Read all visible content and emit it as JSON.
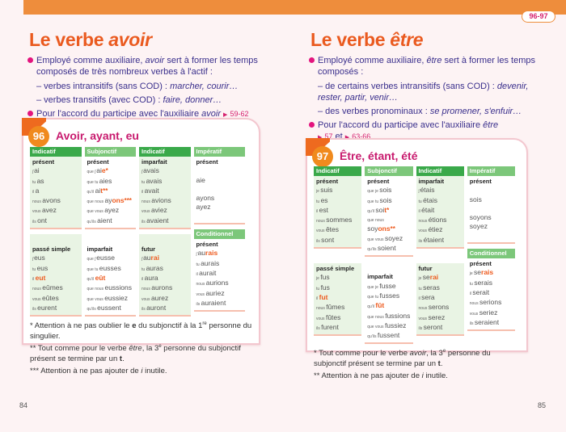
{
  "header": {
    "page_range": "96-97",
    "accent_color": "#ee8d3c"
  },
  "left_page": {
    "title_prefix": "Le verbe ",
    "title_verb": "avoir",
    "intro": {
      "p1_a": "Employé comme auxiliaire, ",
      "p1_verb": "avoir",
      "p1_b": " sert à former les temps composés de très nombreux verbes à l'actif :",
      "sub1_a": "– verbes intransitifs (sans COD) : ",
      "sub1_ex": "marcher, courir…",
      "sub2_a": "– verbes transitifs (avec COD) : ",
      "sub2_ex": "faire, donner…",
      "p2_a": "Pour l'accord du participe avec l'auxiliaire ",
      "p2_verb": "avoir",
      "p2_ref": "59-62"
    },
    "card": {
      "number": "96",
      "title": "Avoir, ayant, eu",
      "headers": {
        "c1": "Indicatif",
        "c2": "Subjonctif",
        "c3": "Indicatif",
        "c4": "Impératif",
        "c4b": "Conditionnel"
      },
      "top": {
        "c1": {
          "tense": "présent",
          "rows": [
            [
              "j'",
              "ai",
              ""
            ],
            [
              "tu",
              "as",
              ""
            ],
            [
              "il",
              "a",
              ""
            ],
            [
              "nous",
              "avons",
              ""
            ],
            [
              "vous",
              "avez",
              ""
            ],
            [
              "ils",
              "ont",
              ""
            ]
          ]
        },
        "c2": {
          "tense": "présent",
          "rows": [
            [
              "que j'",
              "ai",
              "e",
              "*"
            ],
            [
              "que tu",
              "aies",
              "",
              ""
            ],
            [
              "qu'il",
              "ai",
              "t",
              "**"
            ],
            [
              "que nous",
              "ay",
              "ons",
              "***"
            ],
            [
              "que vous",
              "ayez",
              "",
              ""
            ],
            [
              "qu'ils",
              "aient",
              "",
              ""
            ]
          ]
        },
        "c3": {
          "tense": "imparfait",
          "rows": [
            [
              "j'",
              "avais"
            ],
            [
              "tu",
              "avais"
            ],
            [
              "il",
              "avait"
            ],
            [
              "nous",
              "avions"
            ],
            [
              "vous",
              "aviez"
            ],
            [
              "ils",
              "avaient"
            ]
          ]
        },
        "c4": {
          "tense": "présent",
          "rows": [
            "",
            "aie",
            "",
            "ayons",
            "ayez",
            ""
          ]
        }
      },
      "bottom": {
        "c1": {
          "tense": "passé simple",
          "rows": [
            [
              "j'",
              "eus",
              ""
            ],
            [
              "tu",
              "eus",
              ""
            ],
            [
              "il",
              "",
              "eut"
            ],
            [
              "nous",
              "eûmes",
              ""
            ],
            [
              "vous",
              "eûtes",
              ""
            ],
            [
              "ils",
              "eurent",
              ""
            ]
          ]
        },
        "c2": {
          "tense": "imparfait",
          "rows": [
            [
              "que j'",
              "eusse",
              ""
            ],
            [
              "que tu",
              "eusses",
              ""
            ],
            [
              "qu'il",
              "",
              "eût"
            ],
            [
              "que nous",
              "eussions",
              ""
            ],
            [
              "que vous",
              "eussiez",
              ""
            ],
            [
              "qu'ils",
              "eussent",
              ""
            ]
          ]
        },
        "c3": {
          "tense": "futur",
          "rows": [
            [
              "j'",
              "au",
              "rai"
            ],
            [
              "tu",
              "auras",
              ""
            ],
            [
              "il",
              "aura",
              ""
            ],
            [
              "nous",
              "aurons",
              ""
            ],
            [
              "vous",
              "aurez",
              ""
            ],
            [
              "ils",
              "auront",
              ""
            ]
          ]
        },
        "c4": {
          "tense": "présent",
          "rows": [
            [
              "j'",
              "au",
              "rais"
            ],
            [
              "tu",
              "aurais",
              ""
            ],
            [
              "il",
              "aurait",
              ""
            ],
            [
              "nous",
              "aurions",
              ""
            ],
            [
              "vous",
              "auriez",
              ""
            ],
            [
              "ils",
              "auraient",
              ""
            ]
          ]
        }
      },
      "notes": {
        "n1_a": "* Attention à ne pas oublier le ",
        "n1_b": "e",
        "n1_c": " du subjonctif à la 1",
        "n1_sup": "re",
        "n1_d": " personne du singulier.",
        "n2_a": "** Tout comme pour le verbe ",
        "n2_verb": "être",
        "n2_b": ", la 3",
        "n2_sup": "e",
        "n2_c": " personne du subjonctif présent se termine par un ",
        "n2_t": "t",
        "n2_d": ".",
        "n3_a": "*** Attention à ne pas ajouter de ",
        "n3_i": "i",
        "n3_b": " inutile."
      }
    },
    "folio": "84"
  },
  "right_page": {
    "title_prefix": "Le verbe ",
    "title_verb": "être",
    "intro": {
      "p1_a": "Employé comme auxiliaire, ",
      "p1_verb": "être",
      "p1_b": " sert à former les temps composés :",
      "sub1_a": "– de certains verbes intransitifs (sans COD) : ",
      "sub1_ex": "devenir, rester, partir, venir…",
      "sub2_a": "– des verbes pronominaux : ",
      "sub2_ex": "se promener, s'enfuir…",
      "p2_a": "Pour l'accord du participe avec l'auxiliaire ",
      "p2_verb": "être",
      "p2_ref1": "57",
      "p2_et": " et ",
      "p2_ref2": "63-66"
    },
    "card": {
      "number": "97",
      "title": "Être, étant, été",
      "headers": {
        "c1": "Indicatif",
        "c2": "Subjonctif",
        "c3": "Indicatif",
        "c4": "Impératif",
        "c4b": "Conditionnel"
      },
      "top": {
        "c1": {
          "tense": "présent",
          "rows": [
            [
              "je",
              "suis",
              ""
            ],
            [
              "tu",
              "es",
              ""
            ],
            [
              "il",
              "est",
              ""
            ],
            [
              "nous",
              "sommes",
              ""
            ],
            [
              "vous",
              "êtes",
              ""
            ],
            [
              "ils",
              "sont",
              ""
            ]
          ]
        },
        "c2": {
          "tense": "présent",
          "rows": [
            [
              "que je",
              "sois",
              "",
              ""
            ],
            [
              "que tu",
              "sois",
              "",
              ""
            ],
            [
              "qu'il",
              "soi",
              "t",
              "*"
            ],
            [
              "que nous",
              "soy",
              "ons",
              "**"
            ],
            [
              "que vous",
              "soyez",
              "",
              ""
            ],
            [
              "qu'ils",
              "soient",
              "",
              ""
            ]
          ]
        },
        "c3": {
          "tense": "imparfait",
          "rows": [
            [
              "j'",
              "étais"
            ],
            [
              "tu",
              "étais"
            ],
            [
              "il",
              "était"
            ],
            [
              "nous",
              "étions"
            ],
            [
              "vous",
              "étiez"
            ],
            [
              "ils",
              "étaient"
            ]
          ]
        },
        "c4": {
          "tense": "présent",
          "rows": [
            "",
            "sois",
            "",
            "soyons",
            "soyez",
            ""
          ]
        }
      },
      "bottom": {
        "c1": {
          "tense": "passé simple",
          "rows": [
            [
              "je",
              "fus",
              ""
            ],
            [
              "tu",
              "fus",
              ""
            ],
            [
              "il",
              "",
              "fut"
            ],
            [
              "nous",
              "fûmes",
              ""
            ],
            [
              "vous",
              "fûtes",
              ""
            ],
            [
              "ils",
              "furent",
              ""
            ]
          ]
        },
        "c2": {
          "tense": "imparfait",
          "rows": [
            [
              "que je",
              "fusse",
              ""
            ],
            [
              "que tu",
              "fusses",
              ""
            ],
            [
              "qu'il",
              "",
              "fût"
            ],
            [
              "que nous",
              "fussions",
              ""
            ],
            [
              "que vous",
              "fussiez",
              ""
            ],
            [
              "qu'ils",
              "fussent",
              ""
            ]
          ]
        },
        "c3": {
          "tense": "futur",
          "rows": [
            [
              "je",
              "se",
              "rai"
            ],
            [
              "tu",
              "seras",
              ""
            ],
            [
              "il",
              "sera",
              ""
            ],
            [
              "nous",
              "serons",
              ""
            ],
            [
              "vous",
              "serez",
              ""
            ],
            [
              "ils",
              "seront",
              ""
            ]
          ]
        },
        "c4": {
          "tense": "présent",
          "rows": [
            [
              "je",
              "se",
              "rais"
            ],
            [
              "tu",
              "serais",
              ""
            ],
            [
              "il",
              "serait",
              ""
            ],
            [
              "nous",
              "serions",
              ""
            ],
            [
              "vous",
              "seriez",
              ""
            ],
            [
              "ils",
              "seraient",
              ""
            ]
          ]
        }
      },
      "notes": {
        "n1_a": "* Tout comme pour le verbe ",
        "n1_verb": "avoir",
        "n1_b": ", la 3",
        "n1_sup": "e",
        "n1_c": " personne du subjonctif présent se termine par un ",
        "n1_t": "t",
        "n1_d": ".",
        "n2_a": "** Attention à ne pas ajouter de ",
        "n2_i": "i",
        "n2_b": " inutile."
      }
    },
    "folio": "85"
  }
}
